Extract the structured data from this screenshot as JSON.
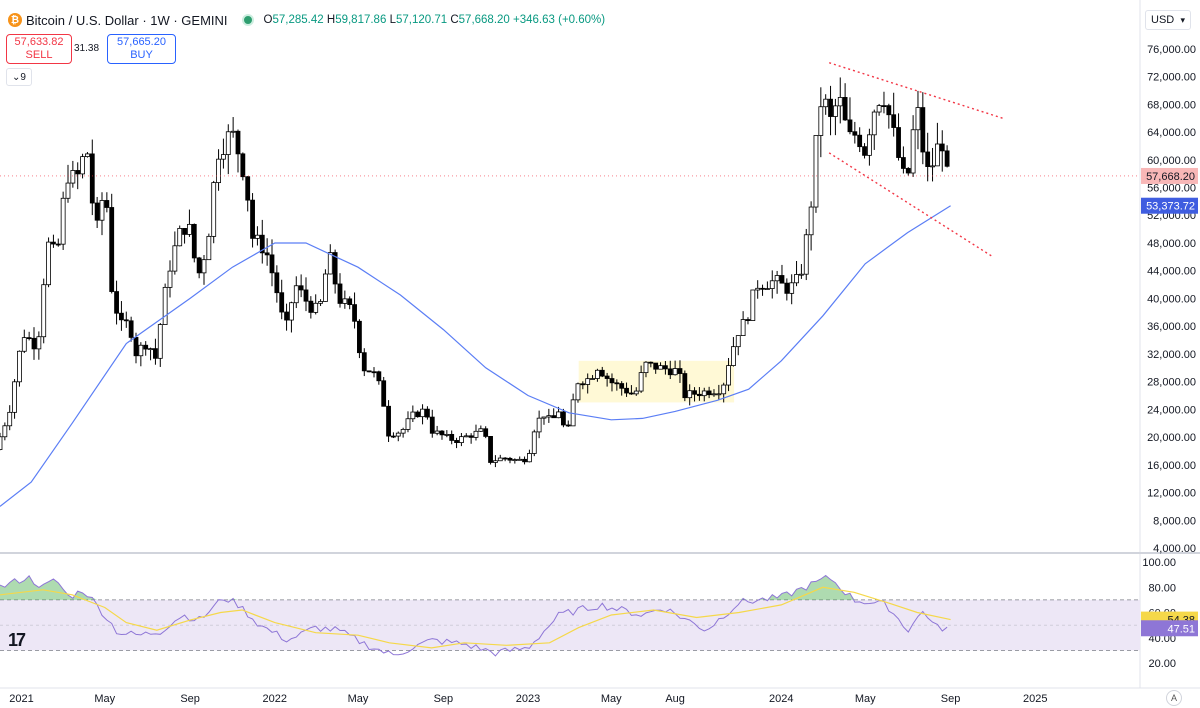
{
  "header": {
    "symbol_logo": "₿",
    "title": "Bitcoin / U.S. Dollar · 1W · GEMINI",
    "open_label": "O",
    "open": "57,285.42",
    "high_label": "H",
    "high": "59,817.86",
    "low_label": "L",
    "low": "57,120.71",
    "close_label": "C",
    "close": "57,668.20",
    "change": "+346.63 (+0.60%)"
  },
  "trade": {
    "sell_price": "57,633.82",
    "sell_label": "SELL",
    "spread": "31.38",
    "buy_price": "57,665.20",
    "buy_label": "BUY"
  },
  "indicator_toggle": "9",
  "currency": "USD",
  "axis_reset_label": "A",
  "chart_data": {
    "type": "candlestick",
    "colors": {
      "up": "#ffffff",
      "down": "#000000",
      "wick": "#000000",
      "ma": "#5b7ef5",
      "rsi": "#8e76d6",
      "rsi_ma": "#f5d84a",
      "rsi_band": "#ede7f6",
      "trend": "#f23645",
      "box": "#fff9d6",
      "last_price": "#f8b7b7",
      "ma_tag": "#3f5de0"
    },
    "x_axis": {
      "ticks": [
        "2021",
        "May",
        "Sep",
        "2022",
        "May",
        "Sep",
        "2023",
        "May",
        "Aug",
        "2024",
        "May",
        "Sep",
        "2025"
      ],
      "tick_dates": [
        "2021-01-01",
        "2021-05-01",
        "2021-09-01",
        "2022-01-01",
        "2022-05-01",
        "2022-09-01",
        "2023-01-01",
        "2023-05-01",
        "2023-08-01",
        "2024-01-01",
        "2024-05-01",
        "2024-09-01",
        "2025-01-01"
      ],
      "range": [
        "2020-12-01",
        "2025-06-01"
      ]
    },
    "y_axis": {
      "range": [
        4000,
        78000
      ],
      "ticks": [
        "76,000.00",
        "72,000.00",
        "68,000.00",
        "64,000.00",
        "60,000.00",
        "56,000.00",
        "52,000.00",
        "48,000.00",
        "44,000.00",
        "40,000.00",
        "36,000.00",
        "32,000.00",
        "28,000.00",
        "24,000.00",
        "20,000.00",
        "16,000.00",
        "12,000.00",
        "8,000.00",
        "4,000.00"
      ],
      "tick_values": [
        76000,
        72000,
        68000,
        64000,
        60000,
        56000,
        52000,
        48000,
        44000,
        40000,
        36000,
        32000,
        28000,
        24000,
        20000,
        16000,
        12000,
        8000,
        4000
      ]
    },
    "last_price_label": "57,668.20",
    "last_price": 57668.2,
    "ma_label": "53,373.72",
    "ma_last": 53373.72,
    "price_path": [
      [
        "2020-12-01",
        18200
      ],
      [
        "2020-12-21",
        23500
      ],
      [
        "2021-01-10",
        35000
      ],
      [
        "2021-01-31",
        33000
      ],
      [
        "2021-02-14",
        48000
      ],
      [
        "2021-02-28",
        46000
      ],
      [
        "2021-03-14",
        58000
      ],
      [
        "2021-03-28",
        57000
      ],
      [
        "2021-04-12",
        62000
      ],
      [
        "2021-04-25",
        49000
      ],
      [
        "2021-05-09",
        57000
      ],
      [
        "2021-05-17",
        42000
      ],
      [
        "2021-05-30",
        36000
      ],
      [
        "2021-06-13",
        36500
      ],
      [
        "2021-06-20",
        32000
      ],
      [
        "2021-07-11",
        34000
      ],
      [
        "2021-07-18",
        30000
      ],
      [
        "2021-07-25",
        35000
      ],
      [
        "2021-08-08",
        44000
      ],
      [
        "2021-08-22",
        49000
      ],
      [
        "2021-09-05",
        51000
      ],
      [
        "2021-09-19",
        43000
      ],
      [
        "2021-10-03",
        48000
      ],
      [
        "2021-10-17",
        61000
      ],
      [
        "2021-11-07",
        64000
      ],
      [
        "2021-11-14",
        62000
      ],
      [
        "2021-11-28",
        57000
      ],
      [
        "2021-12-05",
        49000
      ],
      [
        "2021-12-26",
        47000
      ],
      [
        "2022-01-09",
        42000
      ],
      [
        "2022-01-23",
        35000
      ],
      [
        "2022-02-06",
        42000
      ],
      [
        "2022-02-27",
        39000
      ],
      [
        "2022-03-13",
        38000
      ],
      [
        "2022-03-27",
        46500
      ],
      [
        "2022-04-10",
        40000
      ],
      [
        "2022-05-01",
        38000
      ],
      [
        "2022-05-15",
        30000
      ],
      [
        "2022-05-29",
        29500
      ],
      [
        "2022-06-12",
        26500
      ],
      [
        "2022-06-19",
        20500
      ],
      [
        "2022-07-10",
        20800
      ],
      [
        "2022-07-24",
        23000
      ],
      [
        "2022-08-14",
        24000
      ],
      [
        "2022-08-21",
        21000
      ],
      [
        "2022-09-11",
        20000
      ],
      [
        "2022-09-25",
        19500
      ],
      [
        "2022-10-23",
        20500
      ],
      [
        "2022-11-06",
        21000
      ],
      [
        "2022-11-13",
        16500
      ],
      [
        "2022-12-04",
        17000
      ],
      [
        "2022-12-25",
        16600
      ],
      [
        "2023-01-08",
        17000
      ],
      [
        "2023-01-15",
        20800
      ],
      [
        "2023-01-29",
        23500
      ],
      [
        "2023-02-12",
        22000
      ],
      [
        "2023-02-19",
        24500
      ],
      [
        "2023-03-05",
        20000
      ],
      [
        "2023-03-19",
        28000
      ],
      [
        "2023-04-09",
        28500
      ],
      [
        "2023-04-16",
        30400
      ],
      [
        "2023-05-07",
        28000
      ],
      [
        "2023-06-11",
        26000
      ],
      [
        "2023-06-25",
        30500
      ],
      [
        "2023-07-16",
        30000
      ],
      [
        "2023-08-13",
        29500
      ],
      [
        "2023-08-20",
        26000
      ],
      [
        "2023-09-17",
        26500
      ],
      [
        "2023-10-15",
        27000
      ],
      [
        "2023-10-22",
        30000
      ],
      [
        "2023-11-05",
        35000
      ],
      [
        "2023-11-19",
        37000
      ],
      [
        "2023-12-03",
        42000
      ],
      [
        "2023-12-31",
        42500
      ],
      [
        "2024-01-14",
        41500
      ],
      [
        "2024-01-21",
        41500
      ],
      [
        "2024-02-04",
        43000
      ],
      [
        "2024-02-18",
        51500
      ],
      [
        "2024-03-03",
        68000
      ],
      [
        "2024-03-10",
        69000
      ],
      [
        "2024-03-17",
        65000
      ],
      [
        "2024-03-31",
        69000
      ],
      [
        "2024-04-14",
        63000
      ],
      [
        "2024-04-28",
        64000
      ],
      [
        "2024-05-05",
        60500
      ],
      [
        "2024-05-19",
        67000
      ],
      [
        "2024-06-02",
        70000
      ],
      [
        "2024-06-16",
        64500
      ],
      [
        "2024-06-30",
        58000
      ],
      [
        "2024-07-07",
        56500
      ],
      [
        "2024-07-21",
        68000
      ],
      [
        "2024-08-04",
        58000
      ],
      [
        "2024-08-11",
        59000
      ],
      [
        "2024-08-18",
        60500
      ],
      [
        "2024-08-25",
        64500
      ],
      [
        "2024-09-01",
        57668.2
      ]
    ],
    "ma_path": [
      [
        "2020-12-01",
        10000
      ],
      [
        "2021-01-15",
        13500
      ],
      [
        "2021-03-15",
        22000
      ],
      [
        "2021-06-01",
        33500
      ],
      [
        "2021-09-01",
        40000
      ],
      [
        "2021-11-01",
        44500
      ],
      [
        "2022-01-01",
        48000
      ],
      [
        "2022-02-15",
        48000
      ],
      [
        "2022-05-01",
        44500
      ],
      [
        "2022-07-01",
        40500
      ],
      [
        "2022-09-01",
        35500
      ],
      [
        "2022-11-01",
        30000
      ],
      [
        "2023-01-01",
        26000
      ],
      [
        "2023-03-01",
        23500
      ],
      [
        "2023-05-01",
        22500
      ],
      [
        "2023-06-15",
        22700
      ],
      [
        "2023-08-01",
        23700
      ],
      [
        "2023-10-01",
        25300
      ],
      [
        "2023-11-15",
        26900
      ],
      [
        "2024-01-01",
        31000
      ],
      [
        "2024-03-01",
        37500
      ],
      [
        "2024-05-01",
        45000
      ],
      [
        "2024-07-01",
        49500
      ],
      [
        "2024-09-01",
        53373.72
      ]
    ],
    "trend_lines": [
      {
        "from": [
          "2024-03-10",
          74000
        ],
        "to": [
          "2024-11-15",
          66000
        ]
      },
      {
        "from": [
          "2024-03-10",
          61000
        ],
        "to": [
          "2024-11-01",
          46000
        ]
      }
    ],
    "range_box": {
      "from": [
        "2023-03-15",
        31000
      ],
      "to": [
        "2023-10-25",
        25000
      ]
    },
    "rsi": {
      "range": [
        20,
        100
      ],
      "ticks": [
        "100.00",
        "80.00",
        "60.00",
        "40.00",
        "20.00"
      ],
      "tick_values": [
        100,
        80,
        60,
        40,
        20
      ],
      "upper": 70,
      "lower": 30,
      "last_label": "47.51",
      "last": 47.51,
      "ma_last_label": "54.38",
      "ma_last": 54.38,
      "rsi_path": [
        [
          "2020-12-01",
          80
        ],
        [
          "2021-01-10",
          88
        ],
        [
          "2021-02-01",
          80
        ],
        [
          "2021-02-20",
          86
        ],
        [
          "2021-03-10",
          72
        ],
        [
          "2021-04-01",
          78
        ],
        [
          "2021-05-01",
          58
        ],
        [
          "2021-05-20",
          44
        ],
        [
          "2021-06-20",
          42
        ],
        [
          "2021-07-20",
          45
        ],
        [
          "2021-08-20",
          58
        ],
        [
          "2021-09-15",
          54
        ],
        [
          "2021-10-20",
          72
        ],
        [
          "2021-11-10",
          66
        ],
        [
          "2021-12-10",
          50
        ],
        [
          "2022-01-20",
          38
        ],
        [
          "2022-03-01",
          48
        ],
        [
          "2022-04-01",
          46
        ],
        [
          "2022-05-15",
          34
        ],
        [
          "2022-06-20",
          26
        ],
        [
          "2022-08-15",
          38
        ],
        [
          "2022-10-01",
          35
        ],
        [
          "2022-11-15",
          28
        ],
        [
          "2023-01-01",
          32
        ],
        [
          "2023-02-15",
          58
        ],
        [
          "2023-04-15",
          66
        ],
        [
          "2023-06-15",
          58
        ],
        [
          "2023-07-15",
          64
        ],
        [
          "2023-09-15",
          46
        ],
        [
          "2023-11-01",
          68
        ],
        [
          "2024-01-01",
          72
        ],
        [
          "2024-03-10",
          88
        ],
        [
          "2024-04-15",
          70
        ],
        [
          "2024-06-01",
          66
        ],
        [
          "2024-07-01",
          46
        ],
        [
          "2024-07-25",
          62
        ],
        [
          "2024-08-10",
          48
        ],
        [
          "2024-09-01",
          47.51
        ]
      ],
      "rsi_ma_path": [
        [
          "2020-12-01",
          74
        ],
        [
          "2021-02-01",
          78
        ],
        [
          "2021-03-15",
          74
        ],
        [
          "2021-05-01",
          64
        ],
        [
          "2021-06-01",
          52
        ],
        [
          "2021-07-15",
          46
        ],
        [
          "2021-09-01",
          54
        ],
        [
          "2021-10-15",
          60
        ],
        [
          "2021-11-15",
          62
        ],
        [
          "2022-01-01",
          52
        ],
        [
          "2022-03-01",
          44
        ],
        [
          "2022-05-01",
          42
        ],
        [
          "2022-06-15",
          36
        ],
        [
          "2022-08-15",
          32
        ],
        [
          "2022-10-01",
          36
        ],
        [
          "2022-12-01",
          34
        ],
        [
          "2023-02-01",
          36
        ],
        [
          "2023-03-15",
          48
        ],
        [
          "2023-05-01",
          58
        ],
        [
          "2023-07-01",
          62
        ],
        [
          "2023-09-01",
          56
        ],
        [
          "2023-11-01",
          60
        ],
        [
          "2024-01-01",
          66
        ],
        [
          "2024-03-01",
          80
        ],
        [
          "2024-04-15",
          76
        ],
        [
          "2024-06-01",
          68
        ],
        [
          "2024-07-15",
          60
        ],
        [
          "2024-09-01",
          54.38
        ]
      ]
    }
  }
}
